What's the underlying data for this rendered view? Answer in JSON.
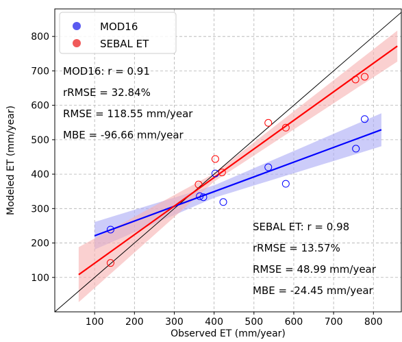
{
  "chart_data": {
    "type": "scatter",
    "xlabel": "Observed ET (mm/year)",
    "ylabel": "Modeled ET (mm/year)",
    "xlim": [
      0,
      870
    ],
    "ylim": [
      0,
      880
    ],
    "xticks": [
      "100",
      "200",
      "300",
      "400",
      "500",
      "600",
      "700",
      "800"
    ],
    "yticks": [
      "100",
      "200",
      "300",
      "400",
      "500",
      "600",
      "700",
      "800"
    ],
    "grid": true,
    "legend_position": "top-left",
    "one_to_one_line": true,
    "series": [
      {
        "name": "MOD16",
        "color": "#0000ff",
        "points": [
          [
            140,
            239
          ],
          [
            364,
            336
          ],
          [
            373,
            333
          ],
          [
            403,
            402
          ],
          [
            423,
            319
          ],
          [
            536,
            420
          ],
          [
            580,
            372
          ],
          [
            756,
            474
          ],
          [
            778,
            560
          ]
        ],
        "fit": {
          "x": [
            100,
            820
          ],
          "y": [
            221,
            529
          ]
        },
        "band_halfwidth": {
          "x": [
            100,
            400,
            820
          ],
          "w": [
            40,
            18,
            48
          ]
        }
      },
      {
        "name": "SEBAL ET",
        "color": "#ff0000",
        "points": [
          [
            140,
            142
          ],
          [
            361,
            370
          ],
          [
            403,
            444
          ],
          [
            420,
            405
          ],
          [
            536,
            549
          ],
          [
            580,
            535
          ],
          [
            755,
            675
          ],
          [
            778,
            683
          ]
        ],
        "fit": {
          "x": [
            60,
            860
          ],
          "y": [
            108,
            772
          ]
        },
        "band_halfwidth": {
          "x": [
            60,
            400,
            860
          ],
          "w": [
            80,
            12,
            45
          ]
        }
      }
    ],
    "annotations": {
      "mod16": [
        "MOD16: r = 0.91",
        "rRMSE = 32.84%",
        "RMSE = 118.55 mm/year",
        "MBE = -96.66 mm/year"
      ],
      "sebal": [
        "SEBAL ET: r = 0.98",
        "rRMSE = 13.57%",
        "RMSE = 48.99 mm/year",
        "MBE = -24.45 mm/year"
      ]
    }
  }
}
